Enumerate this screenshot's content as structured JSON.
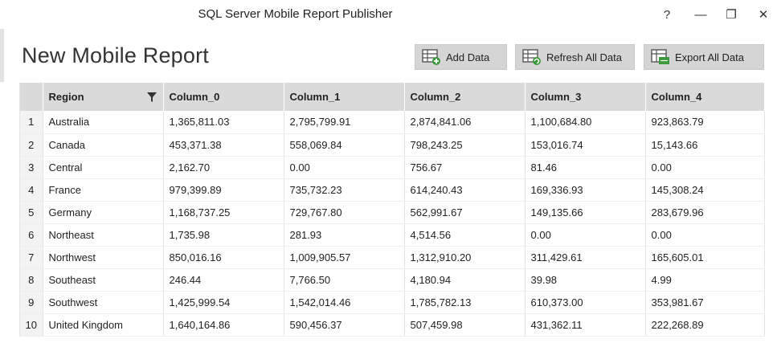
{
  "window": {
    "title": "SQL Server Mobile Report Publisher",
    "help_glyph": "?",
    "min_glyph": "—",
    "max_glyph": "❐",
    "close_glyph": "✕"
  },
  "page": {
    "title": "New Mobile Report"
  },
  "toolbar": {
    "add_label": "Add Data",
    "refresh_label": "Refresh All Data",
    "export_label": "Export All Data",
    "accent_green": "#3a9a3a"
  },
  "grid": {
    "columns": [
      "Region",
      "Column_0",
      "Column_1",
      "Column_2",
      "Column_3",
      "Column_4"
    ],
    "rows": [
      {
        "num": "1",
        "cells": [
          "Australia",
          "1,365,811.03",
          "2,795,799.91",
          "2,874,841.06",
          "1,100,684.80",
          "923,863.79"
        ]
      },
      {
        "num": "2",
        "cells": [
          "Canada",
          "453,371.38",
          "558,069.84",
          "798,243.25",
          "153,016.74",
          "15,143.66"
        ]
      },
      {
        "num": "3",
        "cells": [
          "Central",
          "2,162.70",
          "0.00",
          "756.67",
          "81.46",
          "0.00"
        ]
      },
      {
        "num": "4",
        "cells": [
          "France",
          "979,399.89",
          "735,732.23",
          "614,240.43",
          "169,336.93",
          "145,308.24"
        ]
      },
      {
        "num": "5",
        "cells": [
          "Germany",
          "1,168,737.25",
          "729,767.80",
          "562,991.67",
          "149,135.66",
          "283,679.96"
        ]
      },
      {
        "num": "6",
        "cells": [
          "Northeast",
          "1,735.98",
          "281.93",
          "4,514.56",
          "0.00",
          "0.00"
        ]
      },
      {
        "num": "7",
        "cells": [
          "Northwest",
          "850,016.16",
          "1,009,905.57",
          "1,312,910.20",
          "311,429.61",
          "165,605.01"
        ]
      },
      {
        "num": "8",
        "cells": [
          "Southeast",
          "246.44",
          "7,766.50",
          "4,180.94",
          "39.98",
          "4.99"
        ]
      },
      {
        "num": "9",
        "cells": [
          "Southwest",
          "1,425,999.54",
          "1,542,014.46",
          "1,785,782.13",
          "610,373.00",
          "353,981.67"
        ]
      },
      {
        "num": "10",
        "cells": [
          "United Kingdom",
          "1,640,164.86",
          "590,456.37",
          "507,459.98",
          "431,362.11",
          "222,268.89"
        ]
      }
    ]
  }
}
